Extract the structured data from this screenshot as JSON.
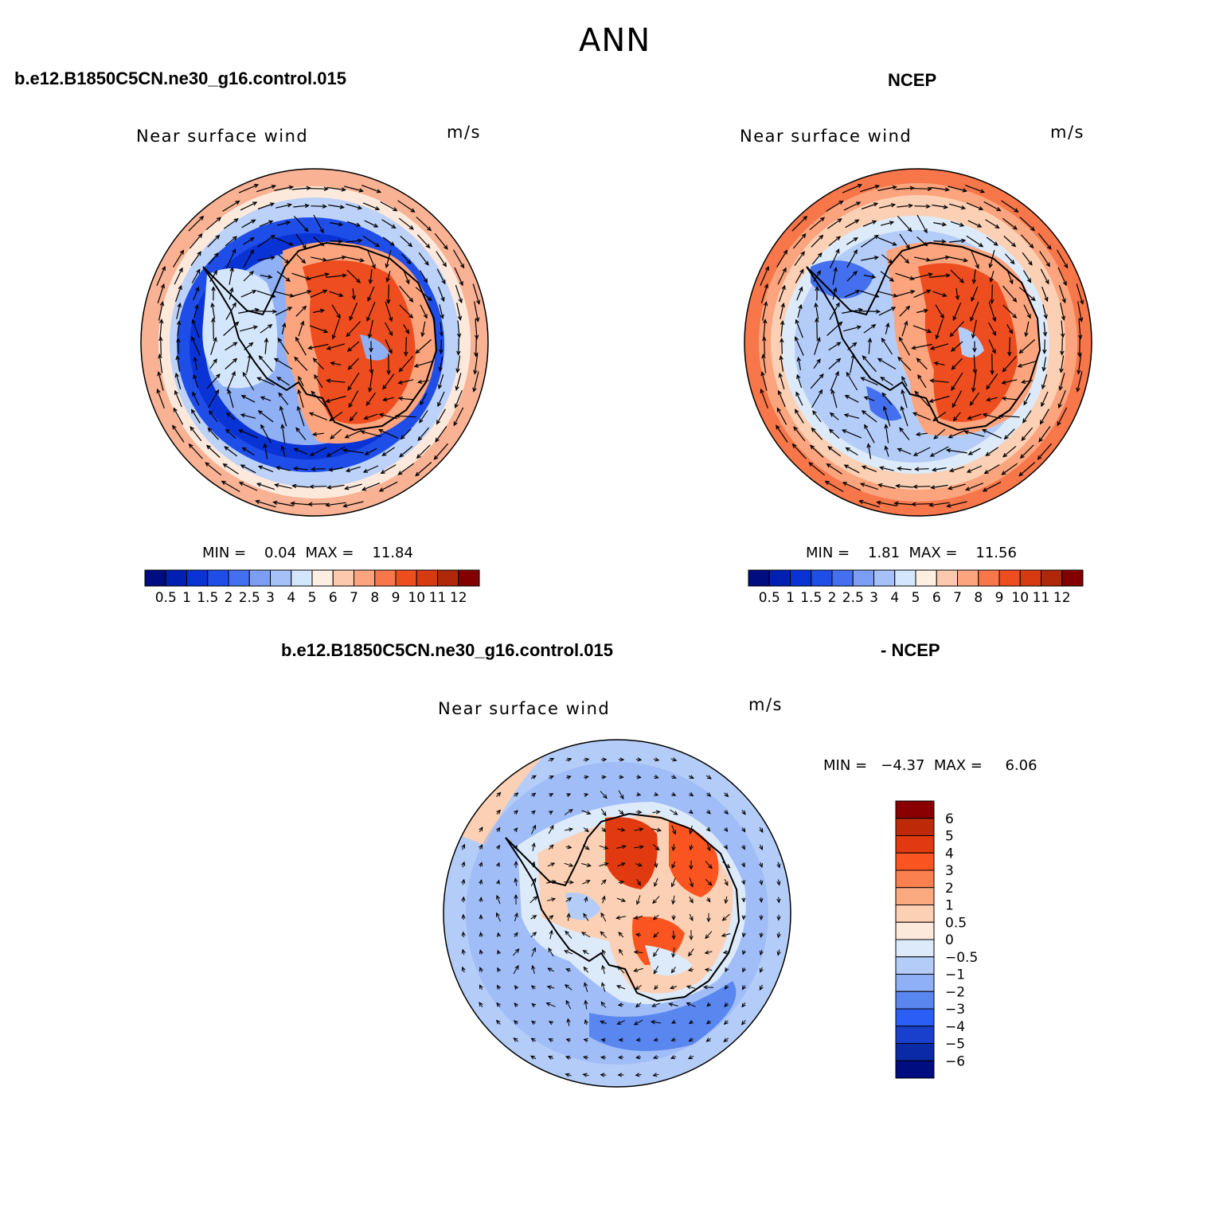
{
  "title": "ANN",
  "top_left_case": "b.e12.B1850C5CN.ne30_g16.control.015",
  "top_right_case": "NCEP",
  "diff_case_left": "b.e12.B1850C5CN.ne30_g16.control.015",
  "diff_case_right": "- NCEP",
  "panels": [
    {
      "id": "model",
      "variable": "Near surface wind",
      "units": "m/s",
      "stats": "MIN =    0.04  MAX =    11.84"
    },
    {
      "id": "obs",
      "variable": "Near surface wind",
      "units": "m/s",
      "stats": "MIN =    1.81  MAX =    11.56"
    },
    {
      "id": "diff",
      "variable": "Near surface wind",
      "units": "m/s",
      "stats": "MIN =   −4.37  MAX =     6.06"
    }
  ],
  "colorbar_abs": {
    "labels": [
      "0.5",
      "1",
      "1.5",
      "2",
      "2.5",
      "3",
      "4",
      "5",
      "6",
      "7",
      "8",
      "9",
      "10",
      "11",
      "12"
    ],
    "colors": [
      "#000d80",
      "#0020b2",
      "#0a33d6",
      "#1f4de8",
      "#4470f0",
      "#7c9ff5",
      "#a6c1f7",
      "#d4e6fb",
      "#fdeee2",
      "#fcc9ac",
      "#fca47e",
      "#f7764a",
      "#ee4d1f",
      "#d73a10",
      "#b0280a",
      "#820000"
    ]
  },
  "colorbar_diff": {
    "labels": [
      "6",
      "5",
      "4",
      "3",
      "2",
      "1",
      "0.5",
      "0",
      "−0.5",
      "−1",
      "−2",
      "−3",
      "−4",
      "−5",
      "−6"
    ],
    "colors": [
      "#8a0000",
      "#be2a08",
      "#e23a10",
      "#fa5520",
      "#fb8050",
      "#fbaa80",
      "#fcd0b4",
      "#fde9dc",
      "#dceaf9",
      "#b4cdf8",
      "#8fb0f5",
      "#5a86f0",
      "#2b5ef5",
      "#1840cc",
      "#0a2aa8",
      "#000d80"
    ]
  },
  "map_data": {
    "projection": "south-polar-stereographic",
    "field": "near surface wind speed + vectors",
    "season": "ANN"
  }
}
